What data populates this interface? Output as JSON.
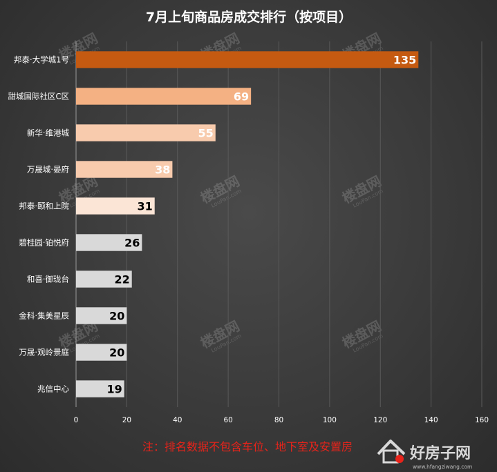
{
  "chart_data": {
    "type": "bar",
    "orientation": "horizontal",
    "title": "7月上旬商品房成交排行（按项目）",
    "categories": [
      "邦泰·大学城1号",
      "甜城国际社区C区",
      "新华·维港城",
      "万晟城·晏府",
      "邦泰·颐和上院",
      "碧桂园·铂悦府",
      "和喜·御珑台",
      "金科·集美星辰",
      "万晟·观岭景庭",
      "兆信中心"
    ],
    "values": [
      135,
      69,
      55,
      38,
      31,
      26,
      22,
      20,
      20,
      19
    ],
    "bar_colors": [
      "#c55a11",
      "#f4b183",
      "#f8cbad",
      "#f8cbad",
      "#fbe5d6",
      "#d9d9d9",
      "#d9d9d9",
      "#d9d9d9",
      "#d9d9d9",
      "#d9d9d9"
    ],
    "value_label_colors": [
      "#ffffff",
      "#ffffff",
      "#ffffff",
      "#ffffff",
      "#000000",
      "#000000",
      "#000000",
      "#000000",
      "#000000",
      "#000000"
    ],
    "xlim": [
      0,
      160
    ],
    "xticks": [
      "0",
      "20",
      "40",
      "60",
      "80",
      "100",
      "120",
      "140",
      "160"
    ],
    "grid": "vertical",
    "legend": "none"
  },
  "footnote": "注：排名数据不包含车位、地下室及安置房",
  "watermark": {
    "text": "楼盘网",
    "sub": "LouPan.com"
  },
  "logo": {
    "text": "好房子网",
    "sub": "www.hfangziwang.com",
    "accent": "#e8231a"
  }
}
